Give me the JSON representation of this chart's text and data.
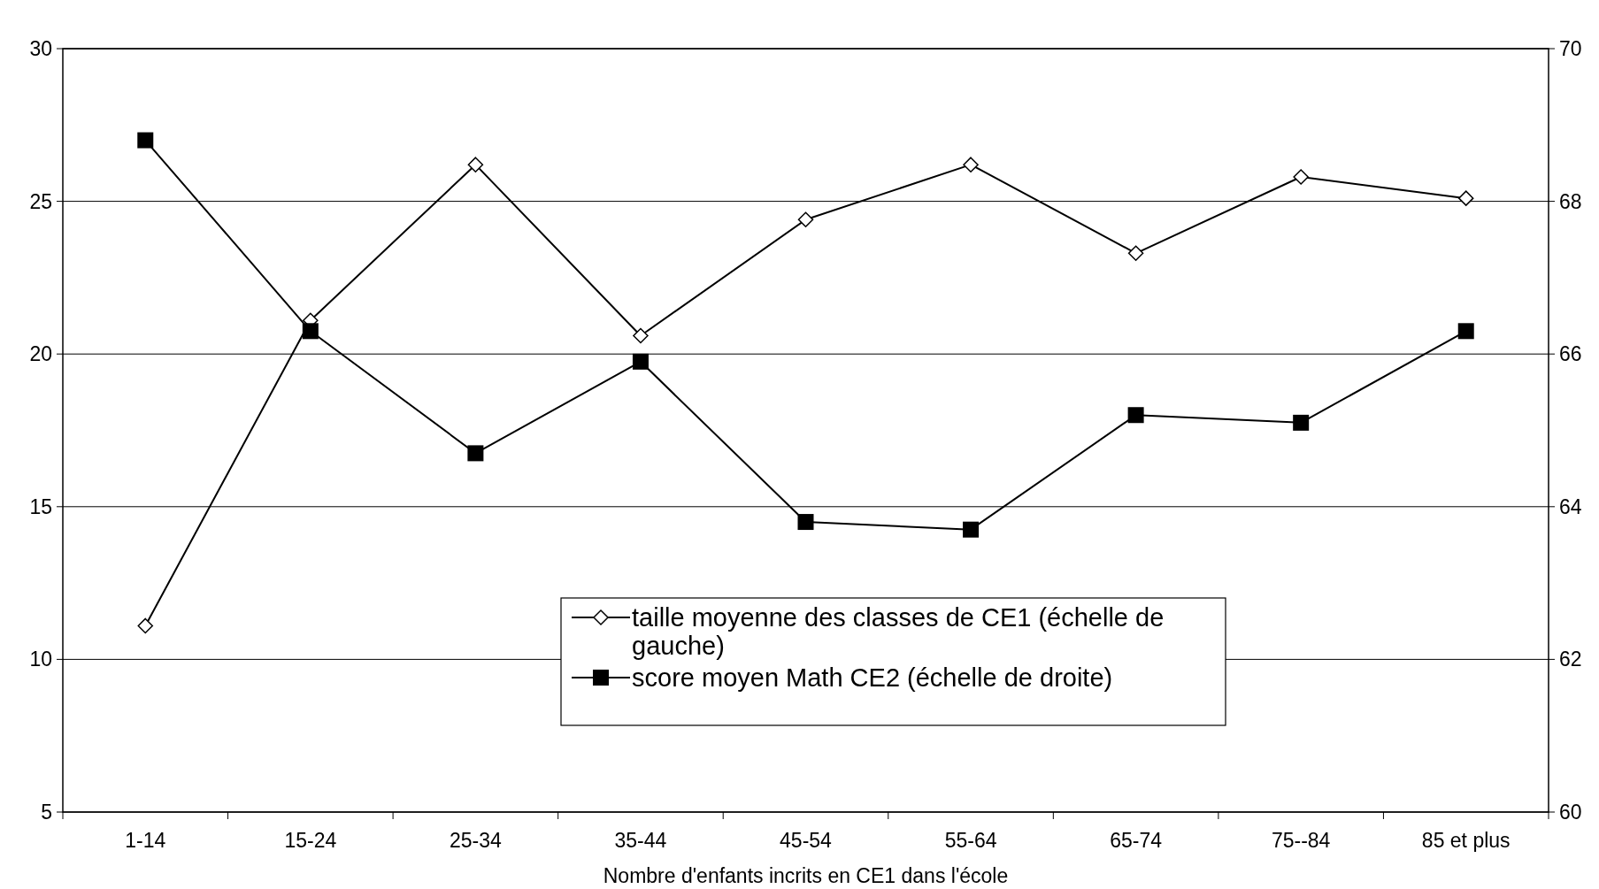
{
  "chart_data": {
    "type": "line",
    "xlabel": "Nombre d'enfants incrits en CE1 dans l'école",
    "categories": [
      "1-14",
      "15-24",
      "25-34",
      "35-44",
      "45-54",
      "55-64",
      "65-74",
      "75--84",
      "85 et plus"
    ],
    "series": [
      {
        "name": "taille moyenne des classes de CE1 (échelle de gauche)",
        "color": "#000000",
        "marker": "diamond",
        "values": [
          11.1,
          21.1,
          26.2,
          20.6,
          24.4,
          26.2,
          23.3,
          25.8,
          25.1
        ]
      },
      {
        "name": "score moyen Math CE2 (échelle de droite)",
        "color": "#000000",
        "marker": "square",
        "axis": "y2",
        "values": [
          68.8,
          66.3,
          64.7,
          65.9,
          63.8,
          63.7,
          65.2,
          65.1,
          66.3
        ]
      }
    ],
    "ylim": [
      5,
      30
    ],
    "yticks": [
      5,
      10,
      15,
      20,
      25,
      30
    ],
    "y2lim": [
      60,
      70
    ],
    "y2ticks": [
      60,
      62,
      64,
      66,
      68,
      70
    ],
    "grid": "y",
    "legend": "bottom",
    "line_style": "solid"
  }
}
